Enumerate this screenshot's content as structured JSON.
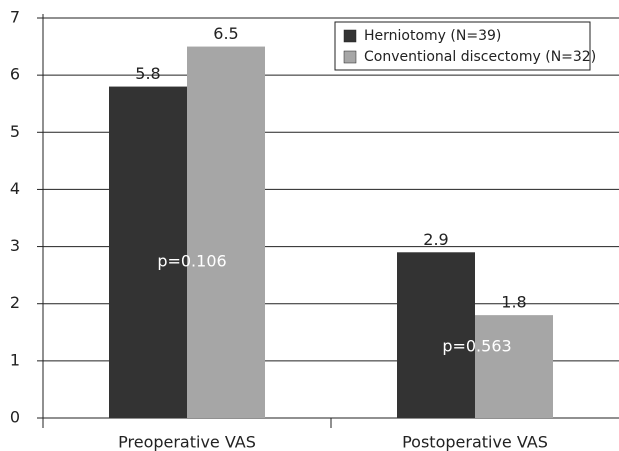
{
  "chart_data": {
    "type": "bar",
    "categories": [
      "Preoperative VAS",
      "Postoperative VAS"
    ],
    "series": [
      {
        "name": "Herniotomy (N=39)",
        "color": "#333333",
        "values": [
          5.8,
          2.9
        ]
      },
      {
        "name": "Conventional discectomy (N=32)",
        "color": "#a6a6a6",
        "values": [
          6.5,
          1.8
        ]
      }
    ],
    "ylim": [
      0,
      7
    ],
    "yticks": [
      0,
      1,
      2,
      3,
      4,
      5,
      6,
      7
    ],
    "grid": true,
    "legend": "upper right",
    "annotations": [
      "p=0.106",
      "p=0.563"
    ]
  }
}
